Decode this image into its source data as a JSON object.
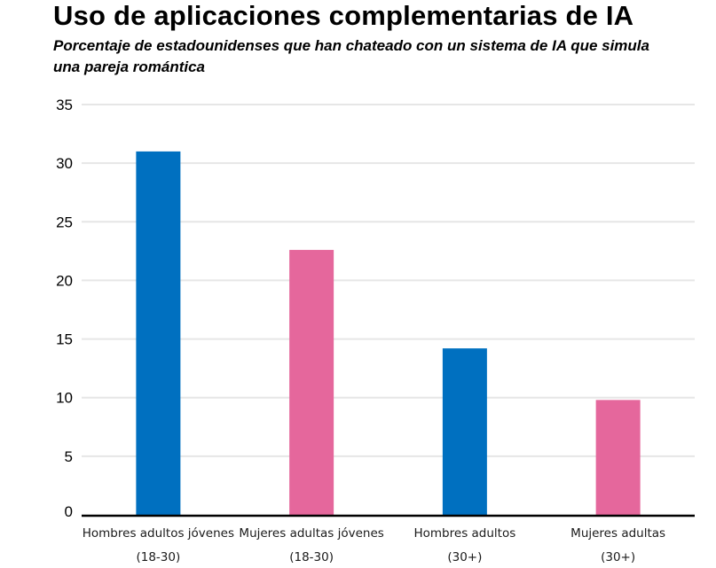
{
  "title": "Uso de aplicaciones complementarias de IA",
  "subtitle": "Porcentaje de estadounidenses que han chateado con un sistema de IA que simula una pareja romántica",
  "colors": {
    "hombres": "#0070c0",
    "mujeres": "#e5679c",
    "grid": "#e6e6e6",
    "axis": "#000000"
  },
  "chart_data": {
    "type": "bar",
    "title": "Uso de aplicaciones complementarias de IA",
    "subtitle": "Porcentaje de estadounidenses que han chateado con un sistema de IA que simula una pareja romántica",
    "categories": [
      [
        "Hombres adultos jóvenes",
        "(18-30)"
      ],
      [
        "Mujeres adultas jóvenes",
        "(18-30)"
      ],
      [
        "Hombres adultos",
        "(30+)"
      ],
      [
        "Mujeres adultas",
        "(30+)"
      ]
    ],
    "values": [
      31,
      22.6,
      14.2,
      9.8
    ],
    "bar_colors": [
      "#0070c0",
      "#e5679c",
      "#0070c0",
      "#e5679c"
    ],
    "ylim": [
      0,
      35
    ],
    "yticks": [
      "0",
      "5",
      "10",
      "15",
      "20",
      "25",
      "30",
      "35"
    ],
    "xlabel": "",
    "ylabel": "",
    "grid": true,
    "legend": "none"
  }
}
